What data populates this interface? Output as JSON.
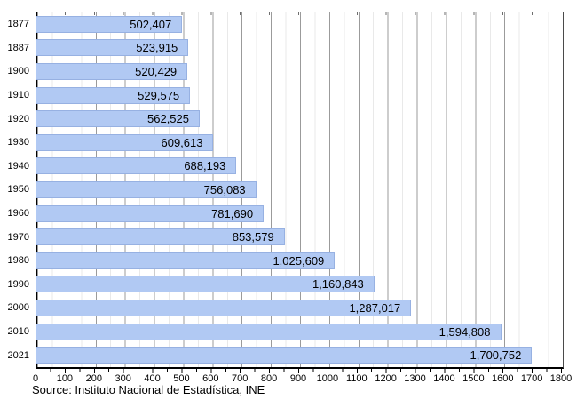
{
  "chart_data": {
    "type": "bar",
    "orientation": "horizontal",
    "title": "",
    "xlabel": "",
    "ylabel": "",
    "categories": [
      "1877",
      "1887",
      "1900",
      "1910",
      "1920",
      "1930",
      "1940",
      "1950",
      "1960",
      "1970",
      "1980",
      "1990",
      "2000",
      "2010",
      "2021"
    ],
    "values": [
      502407,
      523915,
      520429,
      529575,
      562525,
      609613,
      688193,
      756083,
      781690,
      853579,
      1025609,
      1160843,
      1287017,
      1594808,
      1700752
    ],
    "value_labels": [
      "502,407",
      "523,915",
      "520,429",
      "529,575",
      "562,525",
      "609,613",
      "688,193",
      "756,083",
      "781,690",
      "853,579",
      "1,025,609",
      "1,160,843",
      "1,287,017",
      "1,594,808",
      "1,700,752"
    ],
    "xlim": [
      0,
      1800000
    ],
    "x_tick_labels": [
      "0",
      "100",
      "200",
      "300",
      "400",
      "500",
      "600",
      "700",
      "800",
      "900",
      "1000",
      "1100",
      "1200",
      "1300",
      "1400",
      "1500",
      "1600",
      "1700",
      "1800"
    ],
    "x_tick_unit": "thousands",
    "grid": "vertical, major every 100 thousand, minor every 50 thousand",
    "legend": "none",
    "source": "Source: Instituto Nacional de Estadística, INE",
    "bar_color": "#b1c9f3",
    "bar_border_color": "#97b1e2",
    "major_grid_color": "#9b9b9b",
    "minor_grid_color": "#e9e9e9"
  }
}
